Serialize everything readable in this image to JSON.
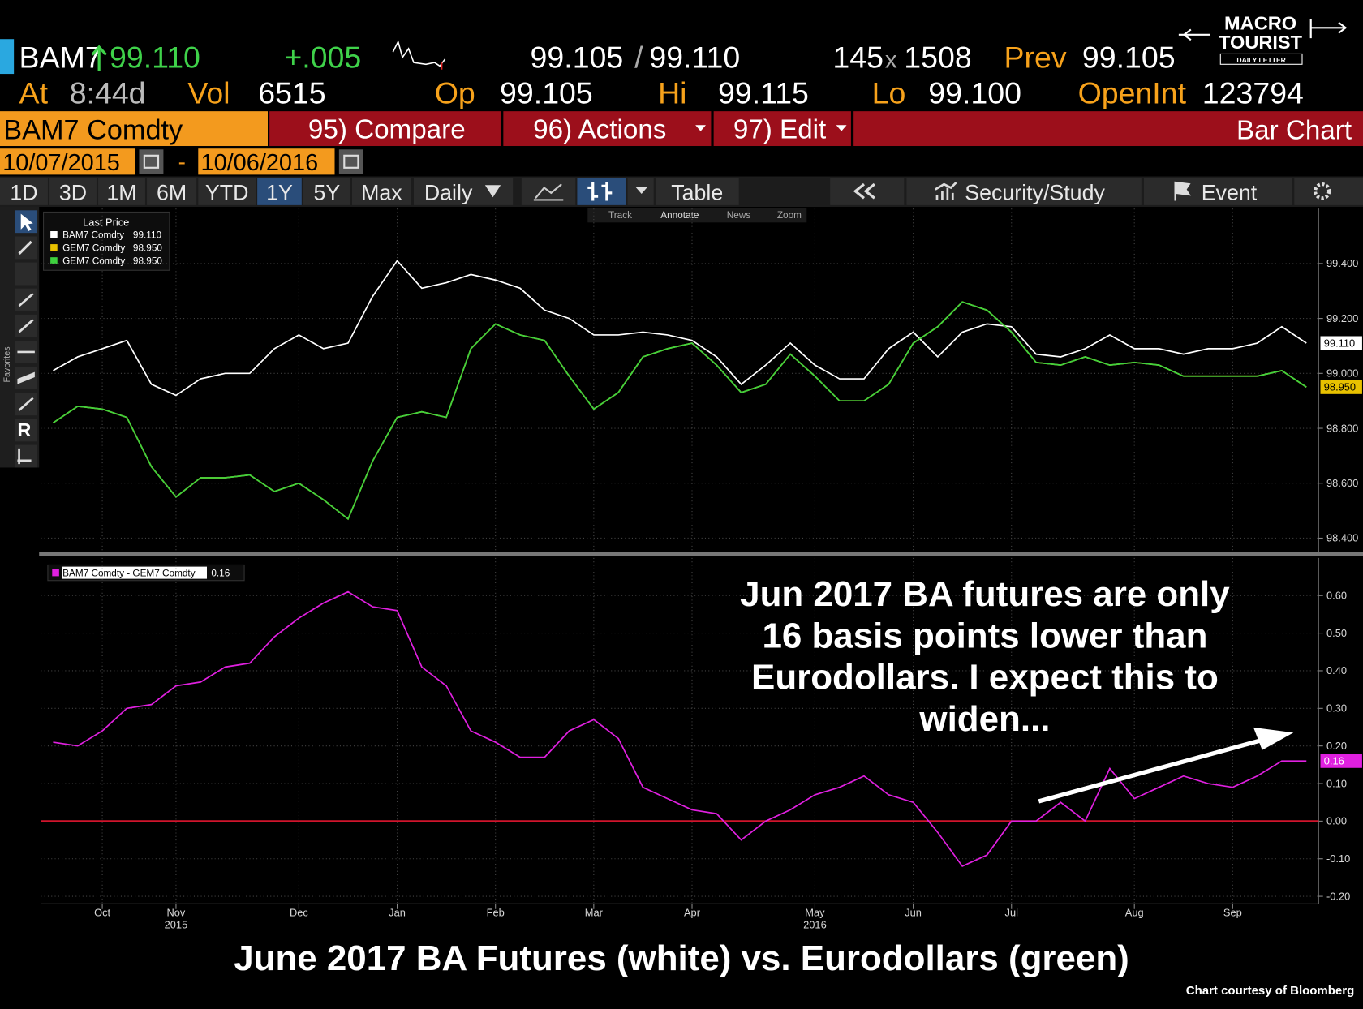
{
  "logo": {
    "line1": "MACRO",
    "line2": "TOURIST",
    "line3": "DAILY LETTER"
  },
  "header": {
    "ticker": "BAM7",
    "last": "99.110",
    "change": "+.005",
    "bid": "99.105",
    "slash": "/",
    "ask": "99.110",
    "bid_size": "145",
    "x": "x",
    "ask_size": "1508",
    "prev_label": "Prev",
    "prev": "99.105",
    "at_label": "At",
    "time": "8:44d",
    "vol_label": "Vol",
    "vol": "6515",
    "open_label": "Op",
    "open": "99.105",
    "high_label": "Hi",
    "high": "99.115",
    "low_label": "Lo",
    "low": "99.100",
    "oi_label": "OpenInt",
    "oi": "123794"
  },
  "tabs": {
    "security": "BAM7 Comdty",
    "compare": "95) Compare",
    "actions": "96) Actions",
    "edit": "97) Edit",
    "view": "Bar Chart"
  },
  "dates": {
    "start": "10/07/2015",
    "sep": "-",
    "end": "10/06/2016"
  },
  "toolbar": {
    "ranges": [
      "1D",
      "3D",
      "1M",
      "6M",
      "YTD",
      "1Y",
      "5Y",
      "Max"
    ],
    "active_range": 5,
    "period": "Daily",
    "table": "Table",
    "security_study": "Security/Study",
    "event": "Event"
  },
  "chart_tools": [
    "Track",
    "Annotate",
    "News",
    "Zoom"
  ],
  "sidebar": {
    "favorites": "Favorites",
    "r": "R"
  },
  "chart_data": [
    {
      "type": "line",
      "legend_title": "Last Price",
      "ylim": [
        98.35,
        99.6
      ],
      "yticks": [
        {
          "value": 98.4,
          "label": "98.400"
        },
        {
          "value": 98.6,
          "label": "98.600"
        },
        {
          "value": 98.8,
          "label": "98.800"
        },
        {
          "value": 99.0,
          "label": "99.000"
        },
        {
          "value": 99.2,
          "label": "99.200"
        },
        {
          "value": 99.4,
          "label": "99.400"
        }
      ],
      "grid": true,
      "series": [
        {
          "name": "BAM7 Comdty",
          "color": "#ffffff",
          "last_label": "99.110",
          "values": [
            99.01,
            99.06,
            99.09,
            99.12,
            98.96,
            98.92,
            98.98,
            99.0,
            99.0,
            99.09,
            99.14,
            99.09,
            99.11,
            99.28,
            99.41,
            99.31,
            99.33,
            99.36,
            99.34,
            99.31,
            99.23,
            99.2,
            99.14,
            99.14,
            99.15,
            99.14,
            99.12,
            99.06,
            98.96,
            99.03,
            99.11,
            99.03,
            98.98,
            98.98,
            99.09,
            99.15,
            99.06,
            99.15,
            99.18,
            99.17,
            99.07,
            99.06,
            99.09,
            99.14,
            99.09,
            99.09,
            99.07,
            99.09,
            99.09,
            99.11,
            99.17,
            99.11
          ]
        },
        {
          "name": "GEM7 Comdty",
          "color": "#e8c100",
          "last_label": "98.950",
          "values": [
            98.82,
            98.88,
            98.87,
            98.84,
            98.66,
            98.55,
            98.62,
            98.62,
            98.63,
            98.57,
            98.6,
            98.54,
            98.47,
            98.68,
            98.84,
            98.86,
            98.84,
            99.09,
            99.18,
            99.14,
            99.12,
            98.99,
            98.87,
            98.93,
            99.06,
            99.09,
            99.11,
            99.03,
            98.93,
            98.96,
            99.07,
            98.99,
            98.9,
            98.9,
            98.96,
            99.11,
            99.17,
            99.26,
            99.23,
            99.15,
            99.04,
            99.03,
            99.06,
            99.03,
            99.04,
            99.03,
            98.99,
            98.99,
            98.99,
            98.99,
            99.01,
            98.95
          ]
        },
        {
          "name": "GEM7 Comdty",
          "color": "#3ed23e",
          "last_label": "98.950",
          "values": [
            98.82,
            98.88,
            98.87,
            98.84,
            98.66,
            98.55,
            98.62,
            98.62,
            98.63,
            98.57,
            98.6,
            98.54,
            98.47,
            98.68,
            98.84,
            98.86,
            98.84,
            99.09,
            99.18,
            99.14,
            99.12,
            98.99,
            98.87,
            98.93,
            99.06,
            99.09,
            99.11,
            99.03,
            98.93,
            98.96,
            99.07,
            98.99,
            98.9,
            98.9,
            98.96,
            99.11,
            99.17,
            99.26,
            99.23,
            99.15,
            99.04,
            99.03,
            99.06,
            99.03,
            99.04,
            99.03,
            98.99,
            98.99,
            98.99,
            98.99,
            99.01,
            98.95
          ]
        }
      ]
    },
    {
      "type": "line",
      "categories": [
        null,
        null,
        "Oct",
        null,
        null,
        "Nov",
        null,
        null,
        null,
        null,
        "Dec",
        null,
        null,
        null,
        "Jan",
        null,
        null,
        null,
        "Feb",
        null,
        null,
        null,
        "Mar",
        null,
        null,
        null,
        "Apr",
        null,
        null,
        null,
        null,
        "May",
        null,
        null,
        null,
        "Jun",
        null,
        null,
        null,
        "Jul",
        null,
        null,
        null,
        null,
        "Aug",
        null,
        null,
        null,
        "Sep",
        null,
        null,
        null
      ],
      "year_labels": [
        null,
        null,
        null,
        null,
        null,
        "2015",
        null,
        null,
        null,
        null,
        null,
        null,
        null,
        null,
        null,
        null,
        null,
        null,
        null,
        null,
        null,
        null,
        null,
        null,
        null,
        null,
        null,
        null,
        null,
        null,
        null,
        "2016",
        null,
        null,
        null,
        null,
        null,
        null,
        null,
        null,
        null,
        null,
        null,
        null,
        null,
        null,
        null,
        null,
        null,
        null,
        null,
        null
      ],
      "ylim": [
        -0.22,
        0.7
      ],
      "yticks": [
        {
          "value": -0.2,
          "label": "-0.20"
        },
        {
          "value": -0.1,
          "label": "-0.10"
        },
        {
          "value": 0,
          "label": "0.00"
        },
        {
          "value": 0.1,
          "label": "0.10"
        },
        {
          "value": 0.2,
          "label": "0.20"
        },
        {
          "value": 0.3,
          "label": "0.30"
        },
        {
          "value": 0.4,
          "label": "0.40"
        },
        {
          "value": 0.5,
          "label": "0.50"
        },
        {
          "value": 0.6,
          "label": "0.60"
        }
      ],
      "grid": true,
      "zero_line_color": "#d0142c",
      "series": [
        {
          "name": "BAM7 Comdty - GEM7 Comdty",
          "color": "#e020e0",
          "last_label": "0.16",
          "values": [
            0.21,
            0.2,
            0.24,
            0.3,
            0.31,
            0.36,
            0.37,
            0.41,
            0.42,
            0.49,
            0.54,
            0.58,
            0.61,
            0.57,
            0.56,
            0.41,
            0.36,
            0.24,
            0.21,
            0.17,
            0.17,
            0.24,
            0.27,
            0.22,
            0.09,
            0.06,
            0.03,
            0.02,
            -0.05,
            0.0,
            0.03,
            0.07,
            0.09,
            0.12,
            0.07,
            0.05,
            -0.03,
            -0.12,
            -0.09,
            0.0,
            0.0,
            0.05,
            0.0,
            0.14,
            0.06,
            0.09,
            0.12,
            0.1,
            0.09,
            0.12,
            0.16,
            0.16
          ]
        }
      ]
    }
  ],
  "annotation": [
    "Jun 2017 BA futures are only",
    "16 basis points lower than",
    "Eurodollars.  I expect this to",
    "widen..."
  ],
  "caption": "June 2017 BA Futures (white) vs. Eurodollars (green)",
  "credit": "Chart courtesy of Bloomberg"
}
